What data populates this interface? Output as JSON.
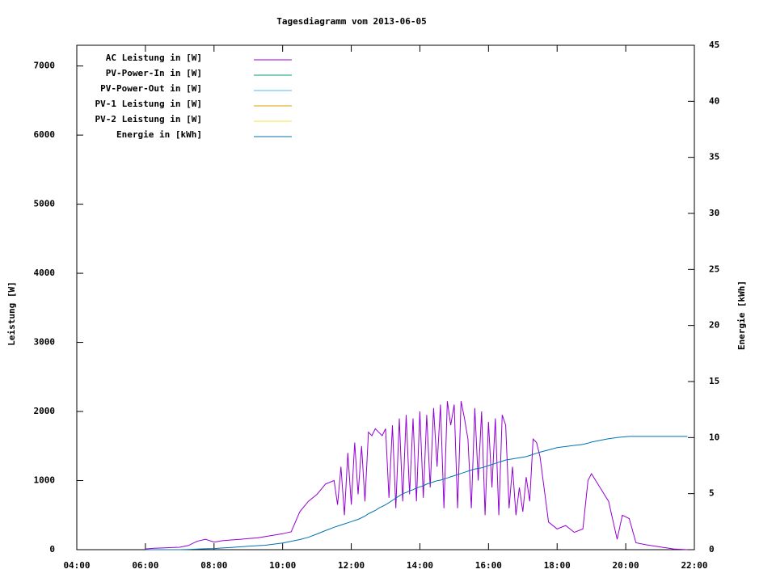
{
  "chart_data": {
    "type": "line",
    "title": "Tagesdiagramm vom 2013-06-05",
    "ylabel": "Leistung [W]",
    "y2label": "Energie [kWh]",
    "legend": "top-left",
    "grid": false,
    "xlim": [
      4,
      22
    ],
    "xticks": [
      {
        "value": 4,
        "label": "04:00"
      },
      {
        "value": 6,
        "label": "06:00"
      },
      {
        "value": 8,
        "label": "08:00"
      },
      {
        "value": 10,
        "label": "10:00"
      },
      {
        "value": 12,
        "label": "12:00"
      },
      {
        "value": 14,
        "label": "14:00"
      },
      {
        "value": 16,
        "label": "16:00"
      },
      {
        "value": 18,
        "label": "18:00"
      },
      {
        "value": 20,
        "label": "20:00"
      },
      {
        "value": 22,
        "label": "22:00"
      }
    ],
    "ylim": [
      0,
      7300
    ],
    "yticks": [
      0,
      1000,
      2000,
      3000,
      4000,
      5000,
      6000,
      7000
    ],
    "y2lim": [
      0,
      45
    ],
    "y2ticks": [
      0,
      5,
      10,
      15,
      20,
      25,
      30,
      35,
      40,
      45
    ],
    "x": [
      6.0,
      6.25,
      6.5,
      6.75,
      7.0,
      7.25,
      7.5,
      7.75,
      8.0,
      8.25,
      8.5,
      8.75,
      9.0,
      9.25,
      9.5,
      9.75,
      10.0,
      10.25,
      10.5,
      10.75,
      11.0,
      11.25,
      11.5,
      11.6,
      11.7,
      11.8,
      11.9,
      12.0,
      12.1,
      12.2,
      12.3,
      12.4,
      12.5,
      12.6,
      12.7,
      12.8,
      12.9,
      13.0,
      13.1,
      13.2,
      13.3,
      13.4,
      13.5,
      13.6,
      13.7,
      13.8,
      13.9,
      14.0,
      14.1,
      14.2,
      14.3,
      14.4,
      14.5,
      14.6,
      14.7,
      14.8,
      14.9,
      15.0,
      15.1,
      15.2,
      15.3,
      15.4,
      15.5,
      15.6,
      15.7,
      15.8,
      15.9,
      16.0,
      16.1,
      16.2,
      16.3,
      16.4,
      16.5,
      16.6,
      16.7,
      16.8,
      16.9,
      17.0,
      17.1,
      17.2,
      17.3,
      17.4,
      17.5,
      17.75,
      18.0,
      18.25,
      18.5,
      18.75,
      18.9,
      19.0,
      19.25,
      19.5,
      19.75,
      19.9,
      20.1,
      20.3,
      20.6,
      21.0,
      21.4,
      21.8
    ],
    "series": [
      {
        "name": "AC Leistung in [W]",
        "color": "#9400d3",
        "values": [
          10,
          20,
          25,
          30,
          35,
          60,
          120,
          150,
          110,
          130,
          140,
          150,
          160,
          170,
          190,
          210,
          230,
          260,
          550,
          700,
          800,
          950,
          1000,
          650,
          1200,
          500,
          1400,
          650,
          1550,
          800,
          1500,
          700,
          1700,
          1650,
          1750,
          1700,
          1650,
          1750,
          750,
          1800,
          600,
          1900,
          700,
          1950,
          800,
          1900,
          700,
          2000,
          750,
          1950,
          900,
          2050,
          1200,
          2100,
          600,
          2150,
          1800,
          2100,
          600,
          2150,
          1900,
          1600,
          600,
          2050,
          1000,
          2000,
          500,
          1850,
          900,
          1900,
          500,
          1950,
          1800,
          600,
          1200,
          500,
          900,
          550,
          1050,
          700,
          1600,
          1550,
          1350,
          400,
          300,
          350,
          250,
          300,
          1000,
          1100,
          900,
          700,
          150,
          500,
          450,
          100,
          70,
          40,
          10,
          0
        ]
      },
      {
        "name": "PV-Power-In in [W]",
        "color": "#009e73",
        "values": [
          null,
          null,
          null,
          null,
          null,
          null,
          null,
          null,
          null,
          null,
          null,
          null,
          null,
          null,
          null,
          null,
          null,
          null,
          null,
          null,
          null,
          null,
          null,
          null,
          null,
          null,
          null,
          null,
          null,
          null,
          null,
          null,
          null,
          null,
          null,
          null,
          null,
          null,
          null,
          null,
          null,
          null,
          null,
          null,
          null,
          null,
          null,
          null,
          null,
          null,
          null,
          null,
          null,
          null,
          null,
          null,
          null,
          null,
          null,
          null,
          null,
          null,
          null,
          null,
          null,
          null,
          null,
          null,
          null,
          null,
          null,
          null,
          null,
          null,
          null,
          null,
          null,
          null,
          null,
          null,
          null,
          null,
          null,
          null,
          null,
          null,
          null,
          null,
          null,
          null,
          null,
          null,
          null,
          null,
          null,
          null,
          null,
          null,
          null,
          null
        ]
      },
      {
        "name": "PV-Power-Out in [W]",
        "color": "#56b4e9",
        "values": [
          null,
          null,
          null,
          null,
          null,
          null,
          null,
          null,
          null,
          null,
          null,
          null,
          null,
          null,
          null,
          null,
          null,
          null,
          null,
          null,
          null,
          null,
          null,
          null,
          null,
          null,
          null,
          null,
          null,
          null,
          null,
          null,
          null,
          null,
          null,
          null,
          null,
          null,
          null,
          null,
          null,
          null,
          null,
          null,
          null,
          null,
          null,
          null,
          null,
          null,
          null,
          null,
          null,
          null,
          null,
          null,
          null,
          null,
          null,
          null,
          null,
          null,
          null,
          null,
          null,
          null,
          null,
          null,
          null,
          null,
          null,
          null,
          null,
          null,
          null,
          null,
          null,
          null,
          null,
          null,
          null,
          null,
          null,
          null,
          null,
          null,
          null,
          null,
          null,
          null,
          null,
          null,
          null,
          null,
          null,
          null,
          null,
          null,
          null,
          null
        ]
      },
      {
        "name": "PV-1 Leistung in [W]",
        "color": "#e69f00",
        "values": [
          null,
          null,
          null,
          null,
          null,
          null,
          null,
          null,
          null,
          null,
          null,
          null,
          null,
          null,
          null,
          null,
          null,
          null,
          null,
          null,
          null,
          null,
          null,
          null,
          null,
          null,
          null,
          null,
          null,
          null,
          null,
          null,
          null,
          null,
          null,
          null,
          null,
          null,
          null,
          null,
          null,
          null,
          null,
          null,
          null,
          null,
          null,
          null,
          null,
          null,
          null,
          null,
          null,
          null,
          null,
          null,
          null,
          null,
          null,
          null,
          null,
          null,
          null,
          null,
          null,
          null,
          null,
          null,
          null,
          null,
          null,
          null,
          null,
          null,
          null,
          null,
          null,
          null,
          null,
          null,
          null,
          null,
          null,
          null,
          null,
          null,
          null,
          null,
          null,
          null,
          null,
          null,
          null,
          null,
          null,
          null,
          null,
          null,
          null,
          null
        ]
      },
      {
        "name": "PV-2 Leistung in [W]",
        "color": "#f0e442",
        "values": [
          null,
          null,
          null,
          null,
          null,
          null,
          null,
          null,
          null,
          null,
          null,
          null,
          null,
          null,
          null,
          null,
          null,
          null,
          null,
          null,
          null,
          null,
          null,
          null,
          null,
          null,
          null,
          null,
          null,
          null,
          null,
          null,
          null,
          null,
          null,
          null,
          null,
          null,
          null,
          null,
          null,
          null,
          null,
          null,
          null,
          null,
          null,
          null,
          null,
          null,
          null,
          null,
          null,
          null,
          null,
          null,
          null,
          null,
          null,
          null,
          null,
          null,
          null,
          null,
          null,
          null,
          null,
          null,
          null,
          null,
          null,
          null,
          null,
          null,
          null,
          null,
          null,
          null,
          null,
          null,
          null,
          null,
          null,
          null,
          null,
          null,
          null,
          null,
          null,
          null,
          null,
          null,
          null,
          null,
          null,
          null,
          null,
          null,
          null,
          null
        ]
      },
      {
        "name": "Energie in [kWh]",
        "color": "#0072b2",
        "axis": "y2",
        "values": [
          0,
          0,
          0,
          0,
          0,
          0.02,
          0.05,
          0.08,
          0.1,
          0.15,
          0.2,
          0.25,
          0.3,
          0.35,
          0.4,
          0.5,
          0.6,
          0.75,
          0.9,
          1.1,
          1.4,
          1.7,
          2.0,
          2.1,
          2.2,
          2.3,
          2.4,
          2.5,
          2.6,
          2.7,
          2.85,
          3.0,
          3.2,
          3.35,
          3.5,
          3.7,
          3.85,
          4.0,
          4.2,
          4.4,
          4.6,
          4.8,
          5.0,
          5.1,
          5.25,
          5.35,
          5.5,
          5.6,
          5.7,
          5.85,
          5.95,
          6.05,
          6.15,
          6.2,
          6.3,
          6.4,
          6.5,
          6.6,
          6.7,
          6.8,
          6.9,
          7.0,
          7.1,
          7.2,
          7.25,
          7.3,
          7.4,
          7.5,
          7.6,
          7.7,
          7.8,
          7.9,
          8.0,
          8.05,
          8.1,
          8.15,
          8.2,
          8.25,
          8.3,
          8.4,
          8.5,
          8.6,
          8.7,
          8.9,
          9.1,
          9.2,
          9.3,
          9.4,
          9.5,
          9.6,
          9.75,
          9.9,
          10.0,
          10.05,
          10.1,
          10.1,
          10.1,
          10.1,
          10.1,
          10.1
        ]
      }
    ]
  }
}
